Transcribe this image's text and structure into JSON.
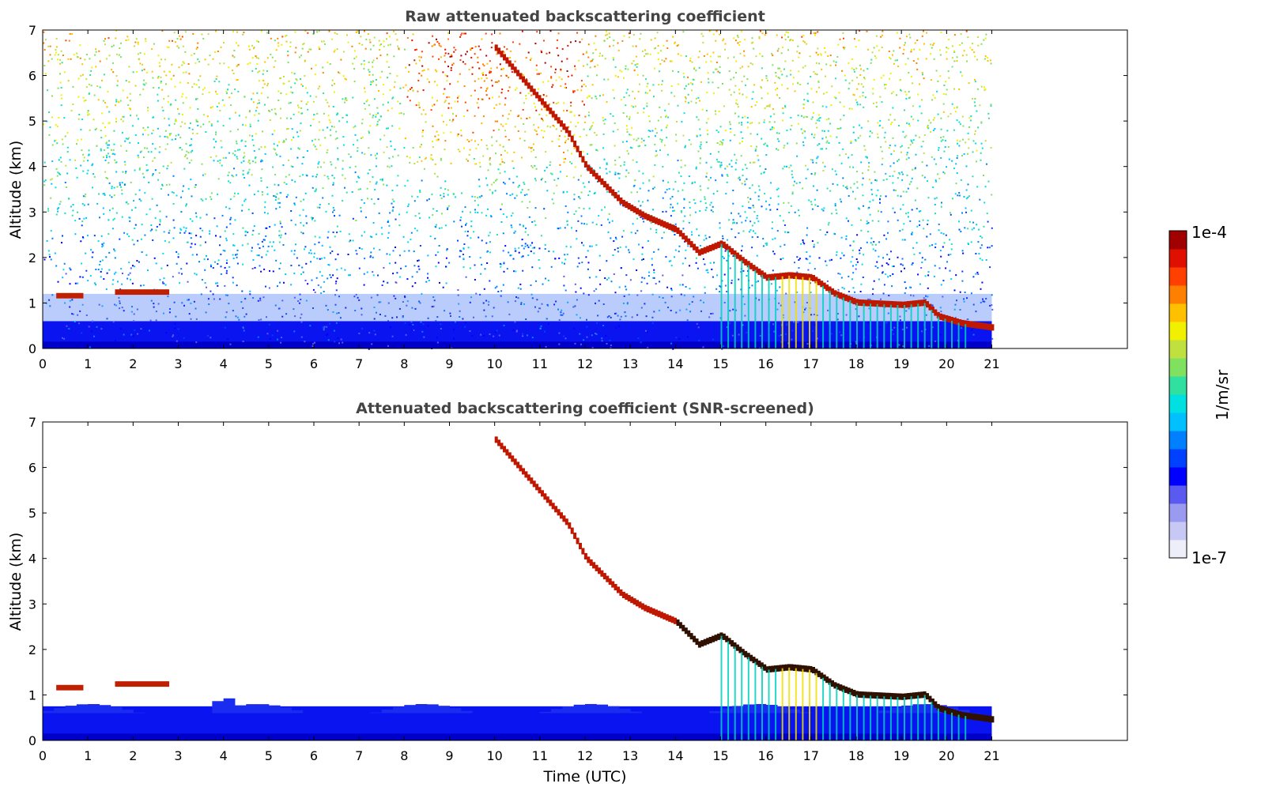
{
  "chart_data": [
    {
      "type": "heatmap",
      "title": "Raw attenuated backscattering coefficient",
      "xlabel": "",
      "ylabel": "Altitude (km)",
      "xlim": [
        0,
        24
      ],
      "ylim": [
        0,
        7
      ],
      "data_end_hour": 21,
      "x_ticks": [
        "0",
        "1",
        "2",
        "3",
        "4",
        "5",
        "6",
        "7",
        "8",
        "9",
        "10",
        "11",
        "12",
        "13",
        "14",
        "15",
        "16",
        "17",
        "18",
        "19",
        "20",
        "21"
      ],
      "y_ticks": [
        "0",
        "1",
        "2",
        "3",
        "4",
        "5",
        "6",
        "7"
      ],
      "features": [
        {
          "name": "low cloud layer",
          "x": [
            0.3,
            2.8
          ],
          "y": [
            1.15,
            1.25
          ]
        },
        {
          "name": "descending cloud band",
          "x": [
            10.0,
            21.0
          ],
          "y": [
            6.6,
            0.45
          ]
        },
        {
          "name": "boundary layer",
          "x": [
            0,
            21
          ],
          "y": [
            0,
            0.6
          ]
        }
      ]
    },
    {
      "type": "heatmap",
      "title": "Attenuated backscattering coefficient (SNR-screened)",
      "xlabel": "Time (UTC)",
      "ylabel": "Altitude (km)",
      "xlim": [
        0,
        24
      ],
      "ylim": [
        0,
        7
      ],
      "data_end_hour": 21,
      "x_ticks": [
        "0",
        "1",
        "2",
        "3",
        "4",
        "5",
        "6",
        "7",
        "8",
        "9",
        "10",
        "11",
        "12",
        "13",
        "14",
        "15",
        "16",
        "17",
        "18",
        "19",
        "20",
        "21"
      ],
      "y_ticks": [
        "0",
        "1",
        "2",
        "3",
        "4",
        "5",
        "6",
        "7"
      ],
      "features": [
        {
          "name": "low cloud layer",
          "x": [
            0.3,
            2.8
          ],
          "y": [
            1.1,
            1.3
          ]
        },
        {
          "name": "descending cloud band",
          "x": [
            9.5,
            21.0
          ],
          "y": [
            6.6,
            0.45
          ]
        },
        {
          "name": "boundary layer",
          "x": [
            0,
            21
          ],
          "y": [
            0,
            0.8
          ]
        }
      ]
    }
  ],
  "colorbar": {
    "label": "1/m/sr",
    "max_label": "1e-4",
    "min_label": "1e-7",
    "colors": [
      "#eeeefa",
      "#c8c8f5",
      "#9a9af0",
      "#5a5af0",
      "#0000ff",
      "#0040ff",
      "#0080ff",
      "#00c0ff",
      "#00e0e0",
      "#30e0a0",
      "#80e060",
      "#c0e040",
      "#f0f000",
      "#ffc000",
      "#ff8000",
      "#ff4000",
      "#e01000",
      "#a00000"
    ]
  }
}
